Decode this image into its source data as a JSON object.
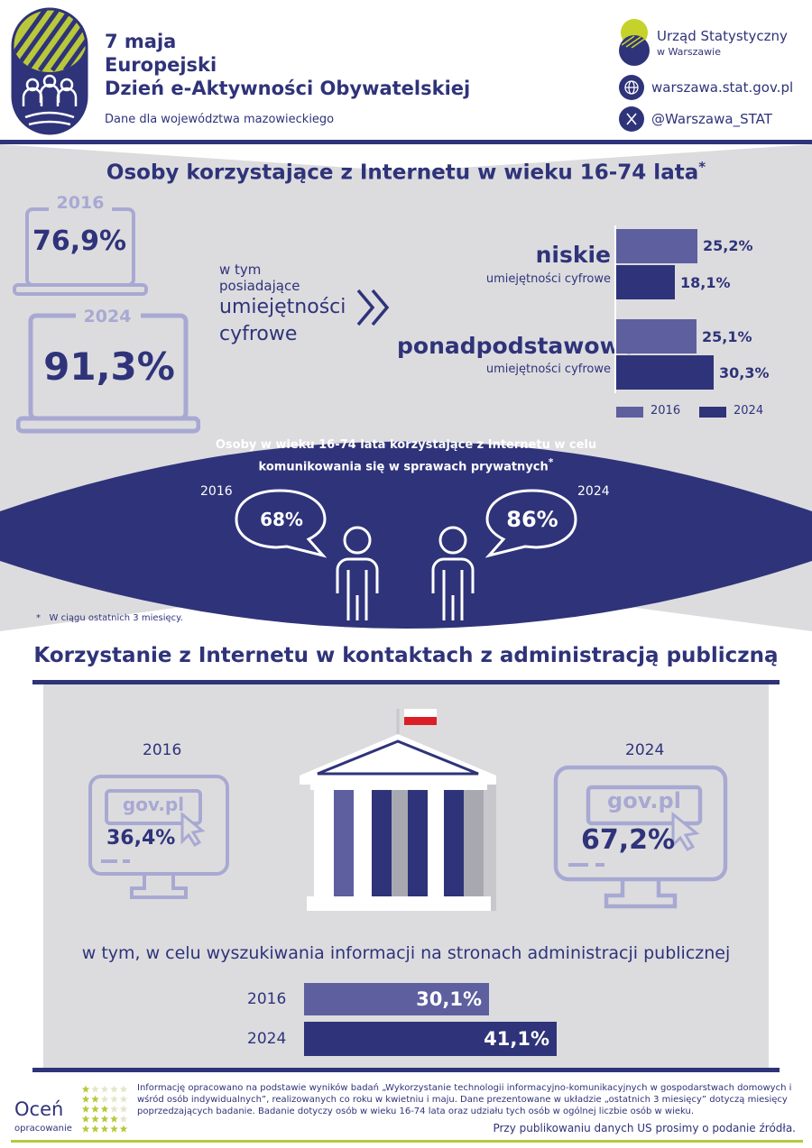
{
  "header": {
    "date": "7 maja",
    "title_line1": "Europejski",
    "title_line2": "Dzień e-Aktywności Obywatelskiej",
    "subtitle": "Dane dla województwa mazowieckiego",
    "org_name": "Urząd Statystyczny",
    "org_city": "w Warszawie",
    "website": "warszawa.stat.gov.pl",
    "twitter": "@Warszawa_STAT"
  },
  "section1": {
    "title": "Osoby korzystające z Internetu w wieku 16-74 lata",
    "title_mark": "*",
    "laptop_2016": {
      "year": "2016",
      "value": "76,9%"
    },
    "laptop_2024": {
      "year": "2024",
      "value": "91,3%"
    },
    "w_tym_line1": "w tym",
    "w_tym_line2": "posiadające",
    "skills_line1": "umiejętności",
    "skills_line2": "cyfrowe",
    "chart_data": {
      "type": "bar",
      "categories": [
        "niskie umiejętności cyfrowe",
        "ponadpodstawowe umiejętności cyfrowe"
      ],
      "series": [
        {
          "name": "2016",
          "values": [
            25.2,
            25.1
          ]
        },
        {
          "name": "2024",
          "values": [
            18.1,
            30.3
          ]
        }
      ],
      "xlim": [
        0,
        30.3
      ]
    },
    "cat1_label": "niskie",
    "cat1_sub": "umiejętności cyfrowe",
    "cat2_label": "ponadpodstawowe",
    "cat2_sub": "umiejętności cyfrowe",
    "bar_labels": [
      "25,2%",
      "18,1%",
      "25,1%",
      "30,3%"
    ],
    "legend_2016": "2016",
    "legend_2024": "2024",
    "colors": {
      "y2016": "#5d5f9f",
      "y2024": "#2f3379"
    }
  },
  "comm": {
    "title_line1": "Osoby w wieku 16-74 lata korzystające z Internetu w celu",
    "title_line2": "komunikowania się w sprawach prywatnych",
    "title_mark": "*",
    "year_2016": "2016",
    "value_2016": "68%",
    "year_2024": "2024",
    "value_2024": "86%"
  },
  "footnote": "*   W ciągu ostatnich 3 miesięcy.",
  "section2": {
    "title": "Korzystanie z Internetu w kontaktach z administracją publiczną",
    "year_2016": "2016",
    "year_2024": "2024",
    "gov_label": "gov.pl",
    "value_2016": "36,4%",
    "value_2024": "67,2%",
    "w_tym": "w tym, w celu wyszukiwania informacji na stronach administracji publicznej",
    "chart_data": {
      "type": "bar",
      "categories": [
        "2016",
        "2024"
      ],
      "values": [
        30.1,
        41.1
      ],
      "xlim": [
        0,
        41.1
      ]
    },
    "bar_labels": [
      "30,1%",
      "41,1%"
    ]
  },
  "footer": {
    "rate_label": "Oceń",
    "rate_sub": "opracowanie",
    "info": "Informację opracowano na podstawie wyników badań „Wykorzystanie technologii informacyjno-komunikacyjnych w gospodarstwach domowych i wśród osób indywidualnych”, realizowanych co roku w kwietniu i maju. Dane prezentowane w układzie „ostatnich 3 miesięcy” dotyczą miesięcy poprzedzających badanie. Badanie dotyczy osób w wieku 16-74 lata oraz udziału tych osób w ogólnej liczbie osób w wieku.",
    "source_note": "Przy publikowaniu danych US prosimy o podanie źródła."
  }
}
